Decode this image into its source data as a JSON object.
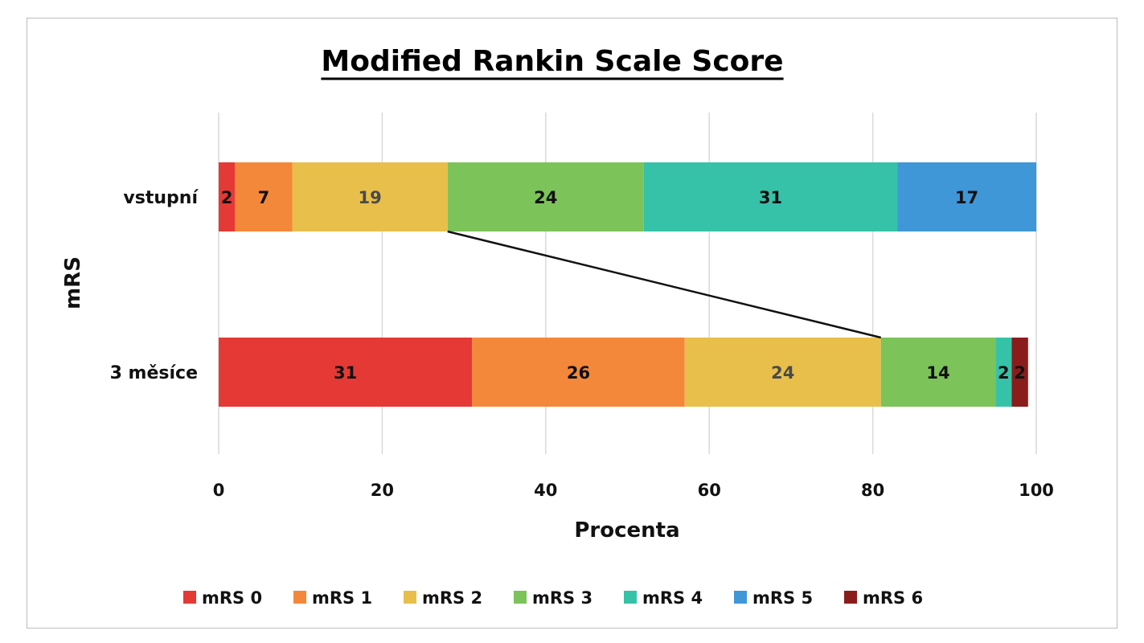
{
  "chart_data": {
    "type": "bar",
    "orientation": "horizontal",
    "stacked": true,
    "title": "Modified Rankin Scale Score",
    "xlabel": "Procenta",
    "ylabel": "mRS",
    "xlim": [
      0,
      100
    ],
    "x_ticks": [
      "0",
      "20",
      "40",
      "60",
      "80",
      "100"
    ],
    "grid": "vertical",
    "legend_position": "bottom",
    "categories": [
      "vstupní",
      "3 měsíce"
    ],
    "series": [
      {
        "name": "mRS 0",
        "color": "#e53935",
        "values": [
          2,
          31
        ],
        "labels": [
          "2",
          "31"
        ],
        "label_color": "#111111"
      },
      {
        "name": "mRS 1",
        "color": "#f4883a",
        "values": [
          7,
          26
        ],
        "labels": [
          "7",
          "26"
        ],
        "label_color": "#111111"
      },
      {
        "name": "mRS 2",
        "color": "#e8bf4b",
        "values": [
          19,
          24
        ],
        "labels": [
          "19",
          "24"
        ],
        "label_color": "#4a4a4a"
      },
      {
        "name": "mRS 3",
        "color": "#7cc35a",
        "values": [
          24,
          14
        ],
        "labels": [
          "24",
          "14"
        ],
        "label_color": "#111111"
      },
      {
        "name": "mRS 4",
        "color": "#36c2a8",
        "values": [
          31,
          2
        ],
        "labels": [
          "31",
          "2"
        ],
        "label_color": "#111111"
      },
      {
        "name": "mRS 5",
        "color": "#3f97d8",
        "values": [
          17,
          0
        ],
        "labels": [
          "17",
          ""
        ],
        "label_color": "#111111"
      },
      {
        "name": "mRS 6",
        "color": "#8b1c1c",
        "values": [
          0,
          2
        ],
        "labels": [
          "",
          "2"
        ],
        "label_color": "#111111"
      }
    ],
    "connector": {
      "from": {
        "category": "vstupní",
        "x": 28,
        "edge": "bottom"
      },
      "to": {
        "category": "3 měsíce",
        "x": 81,
        "edge": "top"
      }
    }
  }
}
